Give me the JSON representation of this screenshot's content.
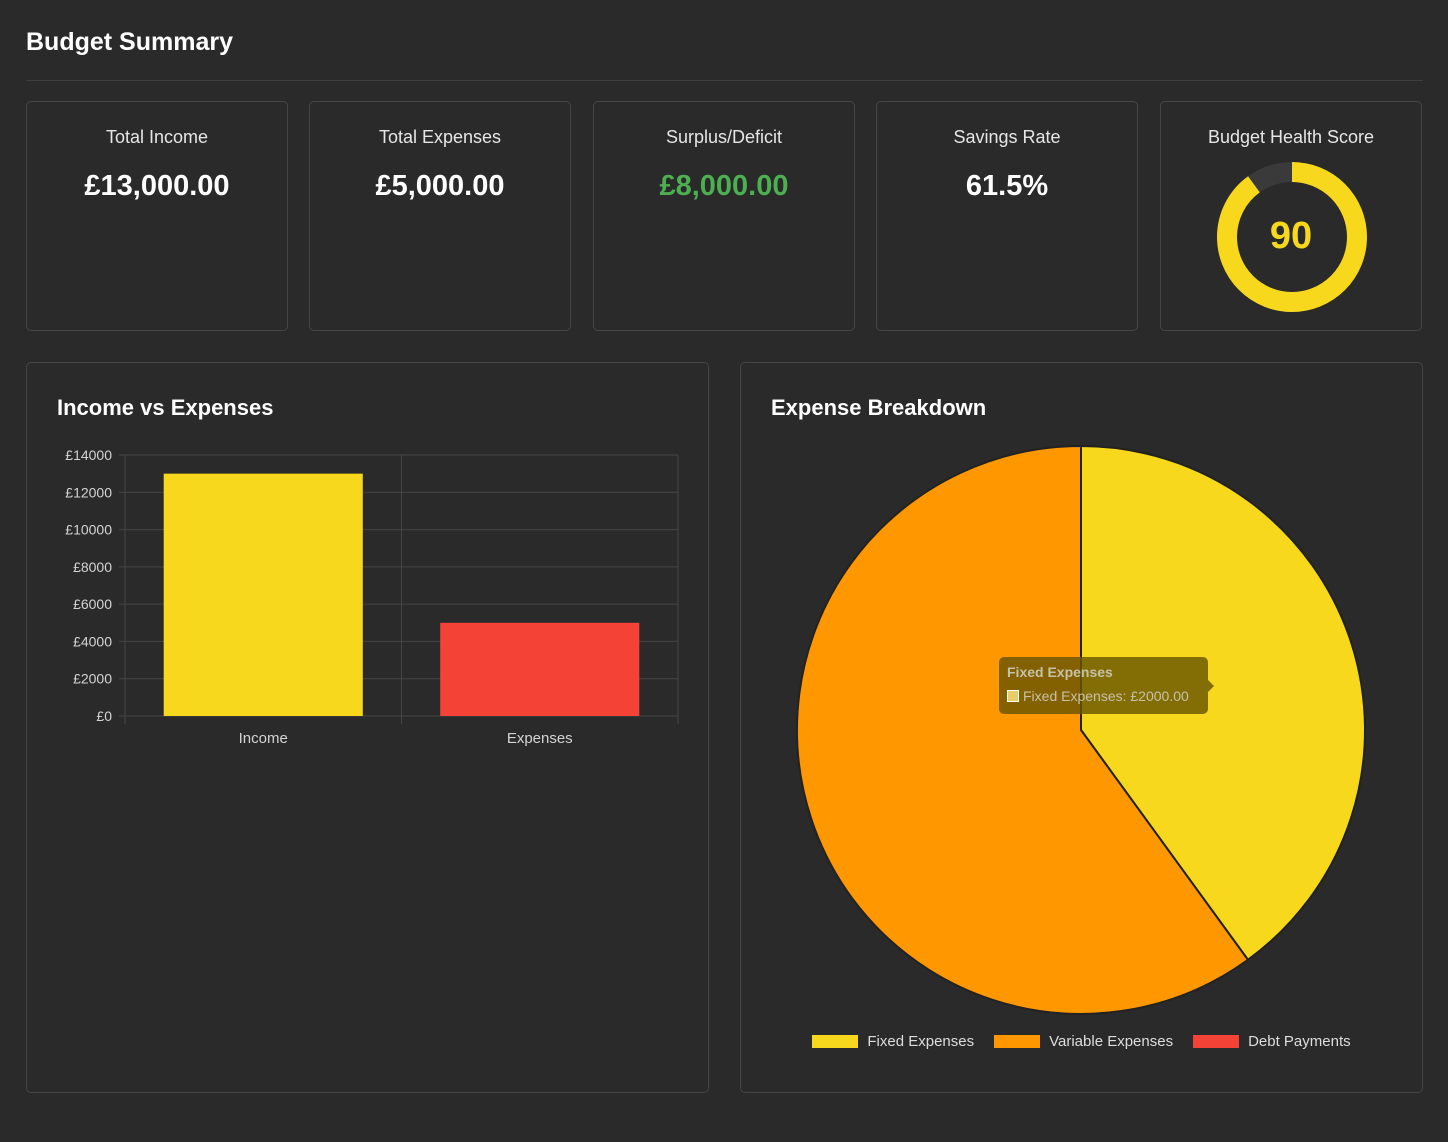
{
  "page": {
    "title": "Budget Summary"
  },
  "cards": [
    {
      "label": "Total Income",
      "value": "£13,000.00"
    },
    {
      "label": "Total Expenses",
      "value": "£5,000.00"
    },
    {
      "label": "Surplus/Deficit",
      "value": "£8,000.00"
    },
    {
      "label": "Savings Rate",
      "value": "61.5%"
    },
    {
      "label": "Budget Health Score",
      "value": "90"
    }
  ],
  "health_score": {
    "value": 90,
    "max": 100
  },
  "colors": {
    "background": "#2a2a2a",
    "accent_yellow": "#f7d81c",
    "orange": "#ff9800",
    "red": "#f44336",
    "positive_green": "#4caf50",
    "gauge_track": "#3a3a3a",
    "grid": "#454545"
  },
  "bar_panel": {
    "title": "Income vs Expenses"
  },
  "pie_panel": {
    "title": "Expense Breakdown",
    "tooltip": {
      "title": "Fixed Expenses",
      "body": "Fixed Expenses: £2000.00"
    }
  },
  "chart_data": [
    {
      "type": "bar",
      "title": "Income vs Expenses",
      "categories": [
        "Income",
        "Expenses"
      ],
      "values": [
        13000,
        5000
      ],
      "colors": [
        "#f7d81c",
        "#f44336"
      ],
      "ylim": [
        0,
        14000
      ],
      "y_ticks": [
        0,
        2000,
        4000,
        6000,
        8000,
        10000,
        12000,
        14000
      ],
      "y_tick_labels": [
        "£0",
        "£2000",
        "£4000",
        "£6000",
        "£8000",
        "£10000",
        "£12000",
        "£14000"
      ],
      "grid": true,
      "legend": "none"
    },
    {
      "type": "pie",
      "title": "Expense Breakdown",
      "labels": [
        "Fixed Expenses",
        "Variable Expenses",
        "Debt Payments"
      ],
      "values": [
        2000,
        3000,
        0
      ],
      "colors": [
        "#f7d81c",
        "#ff9800",
        "#f44336"
      ],
      "legend": "bottom"
    }
  ]
}
